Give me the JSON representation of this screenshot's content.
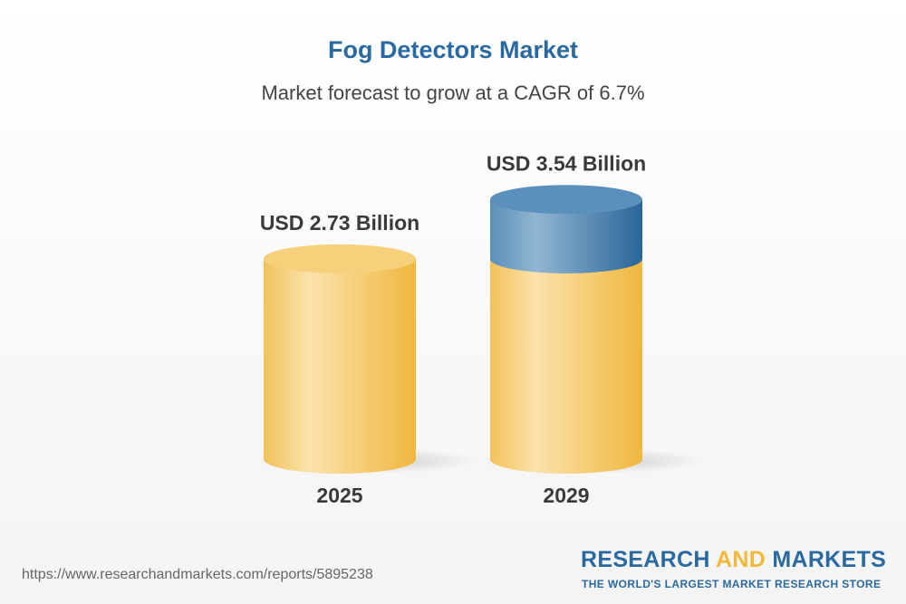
{
  "chart_data": {
    "type": "bar",
    "title": "Fog Detectors Market",
    "subtitle": "Market forecast to grow at a CAGR of 6.7%",
    "categories": [
      "2025",
      "2029"
    ],
    "values": [
      2.73,
      3.54
    ],
    "data_labels": [
      "USD 2.73 Billion",
      "USD 3.54 Billion"
    ],
    "unit": "USD Billion",
    "colors": {
      "bar": "#f3c35a",
      "growth": "#2d6a9e",
      "title": "#2a6aa0"
    }
  },
  "footer": {
    "url": "https://www.researchandmarkets.com/reports/5895238",
    "logo_a": "RESEARCH ",
    "logo_b": "AND",
    "logo_c": " MARKETS",
    "tagline": "THE WORLD'S LARGEST MARKET RESEARCH STORE"
  }
}
